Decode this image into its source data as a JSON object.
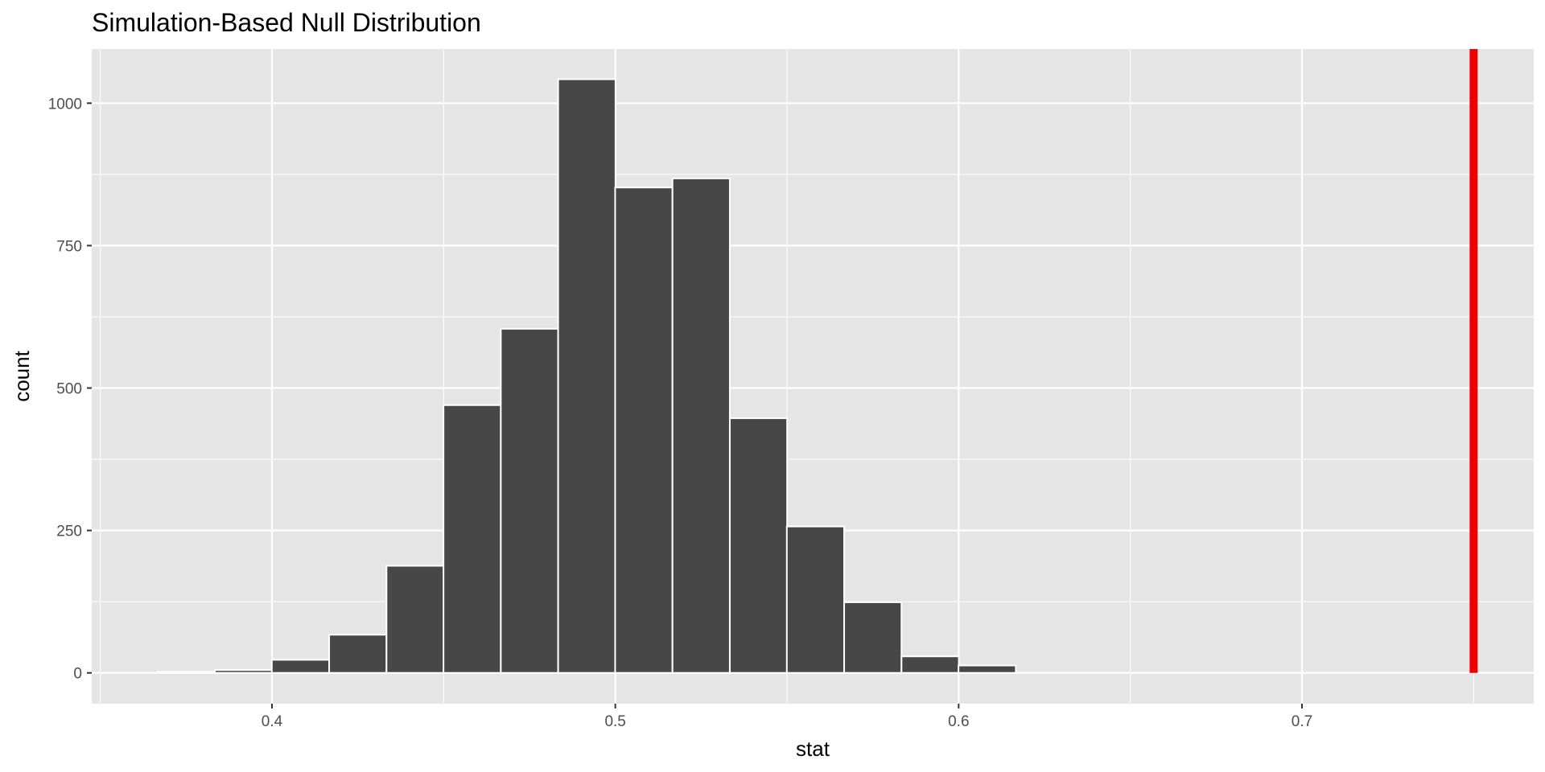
{
  "chart_data": {
    "type": "bar",
    "title": "Simulation-Based Null Distribution",
    "xlabel": "stat",
    "ylabel": "count",
    "xlim": [
      0.3475,
      0.7675
    ],
    "ylim": [
      -54,
      1095
    ],
    "x_ticks": [
      0.4,
      0.5,
      0.6,
      0.7
    ],
    "x_tick_labels": [
      "0.4",
      "0.5",
      "0.6",
      "0.7"
    ],
    "y_ticks": [
      0,
      250,
      500,
      750,
      1000
    ],
    "y_tick_labels": [
      "0",
      "250",
      "500",
      "750",
      "1000"
    ],
    "bin_width": 0.0167,
    "bins": [
      {
        "x": 0.375,
        "count": 2
      },
      {
        "x": 0.3917,
        "count": 5
      },
      {
        "x": 0.4083,
        "count": 23
      },
      {
        "x": 0.425,
        "count": 67
      },
      {
        "x": 0.4417,
        "count": 188
      },
      {
        "x": 0.4583,
        "count": 470
      },
      {
        "x": 0.475,
        "count": 604
      },
      {
        "x": 0.4917,
        "count": 1042
      },
      {
        "x": 0.5083,
        "count": 852
      },
      {
        "x": 0.525,
        "count": 868
      },
      {
        "x": 0.5417,
        "count": 447
      },
      {
        "x": 0.5583,
        "count": 257
      },
      {
        "x": 0.575,
        "count": 124
      },
      {
        "x": 0.5917,
        "count": 29
      },
      {
        "x": 0.6083,
        "count": 13
      }
    ],
    "observed_stat": 0.75,
    "grid": true,
    "colors": {
      "panel_background": "#e5e5e5",
      "grid_line": "#ffffff",
      "bar_fill": "#474747",
      "bar_outline": "#ffffff",
      "observed_line": "#ee0000"
    }
  }
}
